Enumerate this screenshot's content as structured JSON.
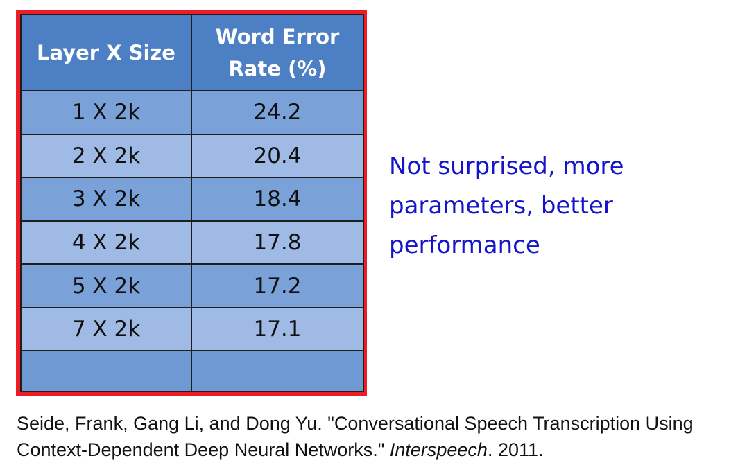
{
  "table": {
    "headers": [
      "Layer X Size",
      "Word Error Rate (%)"
    ],
    "rows": [
      {
        "layer": "1 X 2k",
        "wer": "24.2"
      },
      {
        "layer": "2 X 2k",
        "wer": "20.4"
      },
      {
        "layer": "3 X 2k",
        "wer": "18.4"
      },
      {
        "layer": "4 X 2k",
        "wer": "17.8"
      },
      {
        "layer": "5 X 2k",
        "wer": "17.2"
      },
      {
        "layer": "7 X 2k",
        "wer": "17.1"
      },
      {
        "layer": "",
        "wer": ""
      }
    ],
    "highlight_color": "#ee1c24",
    "header_color": "#4d7fc4"
  },
  "note": {
    "text": "Not surprised, more parameters, better performance",
    "color": "#1414c8"
  },
  "citation": {
    "prefix": "Seide, Frank, Gang Li, and Dong Yu. \"Conversational Speech Transcription Using Context-Dependent Deep Neural Networks.\" ",
    "venue": "Interspeech",
    "suffix": ". 2011."
  }
}
